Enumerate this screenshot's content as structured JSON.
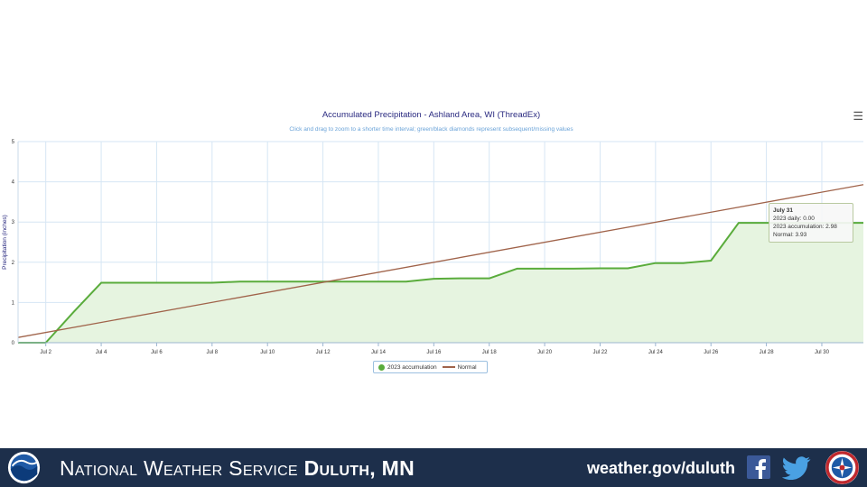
{
  "chart": {
    "title": "Accumulated Precipitation - Ashland Area, WI (ThreadEx)",
    "subtitle": "Click and drag to zoom to a shorter time interval; green/black diamonds represent subsequent/missing values",
    "menu_icon": "hamburger-menu-icon"
  },
  "chart_data": {
    "type": "area",
    "ylabel": "Precipitation (inches)",
    "xlabel": "",
    "ylim": [
      0,
      5
    ],
    "xlim": [
      1,
      31.5
    ],
    "yticks": [
      "0",
      "1",
      "2",
      "3",
      "4",
      "5"
    ],
    "xticks": [
      {
        "day": 2,
        "label": "Jul 2"
      },
      {
        "day": 4,
        "label": "Jul 4"
      },
      {
        "day": 6,
        "label": "Jul 6"
      },
      {
        "day": 8,
        "label": "Jul 8"
      },
      {
        "day": 10,
        "label": "Jul 10"
      },
      {
        "day": 12,
        "label": "Jul 12"
      },
      {
        "day": 14,
        "label": "Jul 14"
      },
      {
        "day": 16,
        "label": "Jul 16"
      },
      {
        "day": 18,
        "label": "Jul 18"
      },
      {
        "day": 20,
        "label": "Jul 20"
      },
      {
        "day": 22,
        "label": "Jul 22"
      },
      {
        "day": 24,
        "label": "Jul 24"
      },
      {
        "day": 26,
        "label": "Jul 26"
      },
      {
        "day": 28,
        "label": "Jul 28"
      },
      {
        "day": 30,
        "label": "Jul 30"
      }
    ],
    "grid": true,
    "legend_position": "bottom-center",
    "series": [
      {
        "name": "2023 accumulation",
        "kind": "area",
        "color": "#5aac3c",
        "x": [
          1,
          2,
          3,
          4,
          5,
          6,
          7,
          8,
          9,
          10,
          11,
          12,
          13,
          14,
          15,
          16,
          17,
          18,
          19,
          20,
          21,
          22,
          23,
          24,
          25,
          26,
          27,
          28,
          29,
          30,
          31
        ],
        "y": [
          0.0,
          0.0,
          0.76,
          1.49,
          1.49,
          1.49,
          1.49,
          1.49,
          1.52,
          1.52,
          1.52,
          1.52,
          1.52,
          1.52,
          1.52,
          1.59,
          1.6,
          1.6,
          1.84,
          1.84,
          1.84,
          1.85,
          1.85,
          1.98,
          1.98,
          2.04,
          2.98,
          2.98,
          2.98,
          2.98,
          2.98
        ]
      },
      {
        "name": "Normal",
        "kind": "line",
        "color": "#a0634a",
        "x": [
          1,
          31.5
        ],
        "y": [
          0.13,
          3.93
        ]
      }
    ]
  },
  "tooltip": {
    "date": "July 31",
    "line1": "2023 daily: 0.00",
    "line2": "2023 accumulation: 2.98",
    "line3": "Normal: 3.93"
  },
  "footer": {
    "org_prefix": "National Weather Service ",
    "office": "Duluth, MN",
    "url": "weather.gov/duluth",
    "bg_color": "#1d2f4b"
  },
  "colors": {
    "accumulation": "#5aac3c",
    "accumulation_fill": "#e6f4e0",
    "normal": "#a0634a",
    "grid": "#d6e6f4",
    "title": "#2a2a80"
  }
}
